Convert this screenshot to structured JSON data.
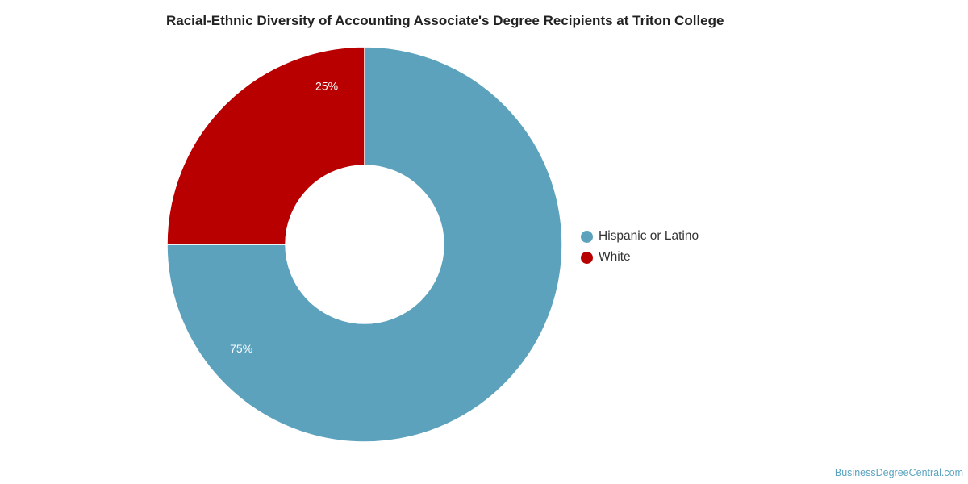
{
  "chart_data": {
    "type": "pie",
    "variant": "donut",
    "title": "Racial-Ethnic Diversity of Accounting Associate's Degree Recipients at Triton College",
    "slices": [
      {
        "label": "Hispanic or Latino",
        "value": 75,
        "display": "75%",
        "color": "#5da2bd"
      },
      {
        "label": "White",
        "value": 25,
        "display": "25%",
        "color": "#b90000"
      }
    ],
    "legend_position": "right",
    "start_angle": "top, clockwise"
  },
  "footer": {
    "source": "BusinessDegreeCentral.com"
  }
}
